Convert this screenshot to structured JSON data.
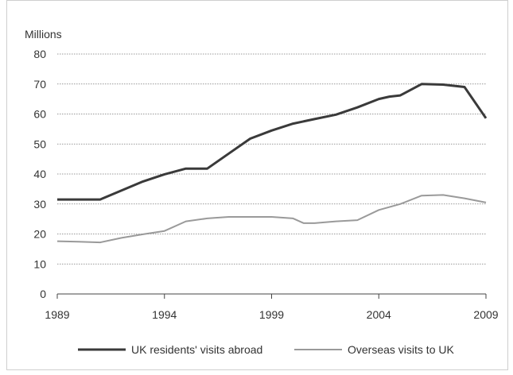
{
  "chart_data": {
    "type": "line",
    "ylabel": "Millions",
    "ylim": [
      0,
      80
    ],
    "yticks": [
      "0",
      "10",
      "20",
      "30",
      "40",
      "50",
      "60",
      "70",
      "80"
    ],
    "xlim": [
      1989,
      2009
    ],
    "xticks": [
      "1989",
      "1994",
      "1999",
      "2004",
      "2009"
    ],
    "grid": "horizontal-dotted",
    "legend_position": "bottom",
    "series": [
      {
        "name": "UK residents' visits abroad",
        "color": "#3a3a3a",
        "x": [
          1989,
          1990,
          1991,
          1992,
          1993,
          1994,
          1995,
          1996,
          1997,
          1998,
          1999,
          2000,
          2001,
          2002,
          2003,
          2004,
          2004.5,
          2005,
          2006,
          2007,
          2008,
          2009
        ],
        "values": [
          31.5,
          31.5,
          31.5,
          34.5,
          37.5,
          39.9,
          41.8,
          41.8,
          46.8,
          51.8,
          54.5,
          56.8,
          58.3,
          59.8,
          62.2,
          65.0,
          65.8,
          66.2,
          70.0,
          69.8,
          69.0,
          58.6
        ]
      },
      {
        "name": "Overseas visits to UK",
        "color": "#9a9a9a",
        "x": [
          1989,
          1990,
          1991,
          1992,
          1993,
          1994,
          1995,
          1996,
          1997,
          1998,
          1999,
          2000,
          2000.5,
          2001,
          2002,
          2003,
          2004,
          2005,
          2006,
          2007,
          2008,
          2009
        ],
        "values": [
          17.6,
          17.4,
          17.2,
          18.7,
          19.9,
          21.0,
          24.2,
          25.2,
          25.7,
          25.7,
          25.7,
          25.2,
          23.6,
          23.6,
          24.2,
          24.6,
          28.0,
          30.0,
          32.8,
          33.0,
          31.9,
          30.5
        ]
      }
    ]
  }
}
